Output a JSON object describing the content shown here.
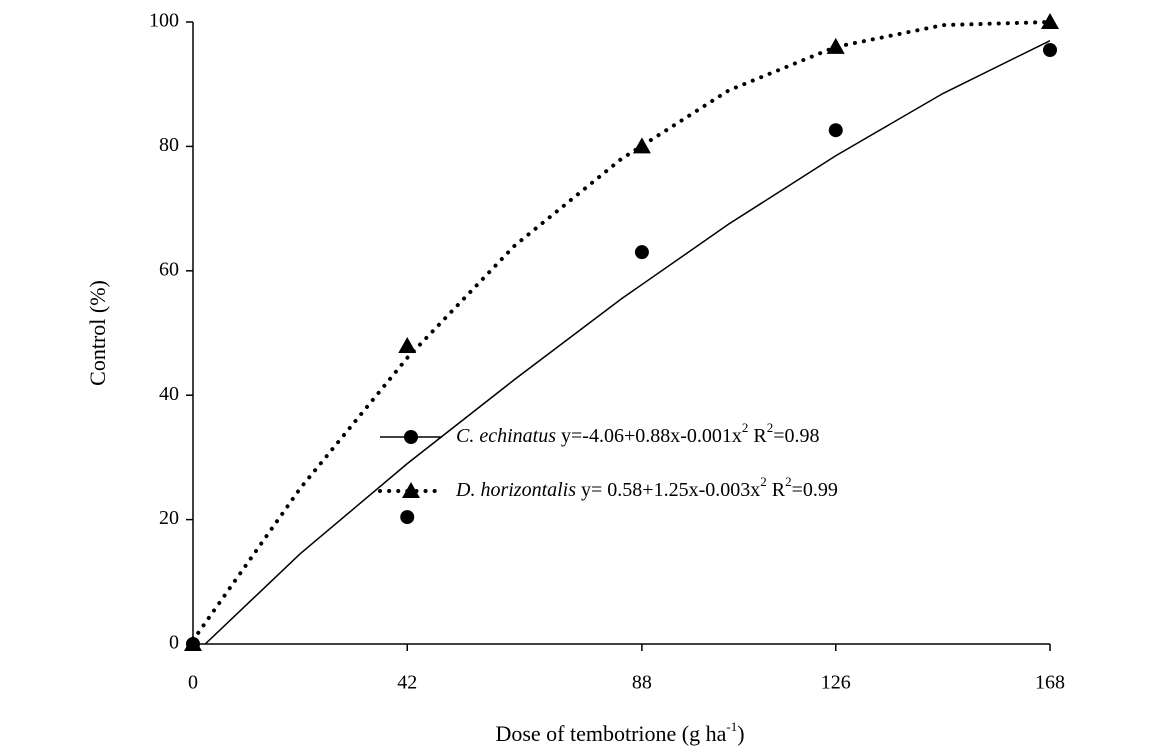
{
  "chart_data": {
    "type": "scatter",
    "xlabel": [
      {
        "text": "Dose of tembotrione (g ha"
      },
      {
        "sup": "-1"
      },
      {
        "text": ")"
      }
    ],
    "ylabel": "Control (%)",
    "xlim": [
      0,
      168
    ],
    "xticks": [
      0,
      42,
      88,
      126,
      168
    ],
    "ylim": [
      0,
      100
    ],
    "yticks": [
      0,
      20,
      40,
      60,
      80,
      100
    ],
    "grid": false,
    "series": [
      {
        "name": "C. echinatus",
        "color": "#000000",
        "marker": "circle",
        "line": "solid",
        "equation": [
          {
            "text": "y=-4.06+0.88x-0.001x"
          },
          {
            "sup": "2"
          },
          {
            "text": " R"
          },
          {
            "sup": "2"
          },
          {
            "text": "=0.98"
          }
        ],
        "x": [
          0,
          42,
          88,
          126,
          168
        ],
        "values": [
          0,
          20.4,
          63,
          82.6,
          95.5
        ],
        "fit": {
          "x": [
            2.4,
            21,
            42,
            63,
            84,
            105,
            126,
            147,
            168
          ],
          "values": [
            0,
            14.5,
            29,
            42.5,
            55.5,
            67.5,
            78.5,
            88.5,
            97
          ]
        }
      },
      {
        "name": "D. horizontalis",
        "color": "#000000",
        "marker": "triangle",
        "line": "dotted",
        "equation": [
          {
            "text": "y= 0.58+1.25x-0.003x"
          },
          {
            "sup": "2"
          },
          {
            "text": " R"
          },
          {
            "sup": "2"
          },
          {
            "text": "=0.99"
          }
        ],
        "x": [
          0,
          42,
          88,
          126,
          168
        ],
        "values": [
          0,
          47.9,
          80,
          96,
          100
        ],
        "fit": {
          "x": [
            0,
            21,
            42,
            63,
            84,
            105,
            126,
            147,
            168
          ],
          "values": [
            0.6,
            25,
            46,
            64,
            78,
            89,
            96,
            99.5,
            100
          ]
        }
      }
    ]
  }
}
